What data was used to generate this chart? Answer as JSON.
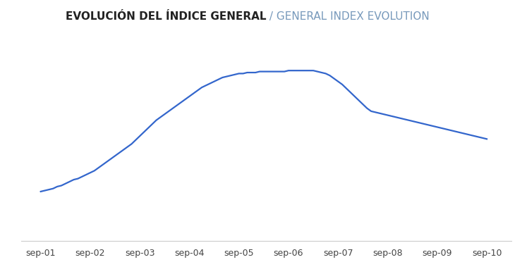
{
  "title_part1": "EVOLUCIÓN DEL ÍNDICE GENERAL",
  "title_part2": " / GENERAL INDEX EVOLUTION",
  "title_color1": "#222222",
  "title_color2": "#7799bb",
  "line_color": "#3366cc",
  "background_color": "#ffffff",
  "grid_color": "#cccccc",
  "x_labels": [
    "sep-01",
    "sep-02",
    "sep-03",
    "sep-04",
    "sep-05",
    "sep-06",
    "sep-07",
    "sep-08",
    "sep-09",
    "sep-10"
  ],
  "y_values": [
    100,
    101,
    102,
    103,
    105,
    106,
    108,
    110,
    112,
    113,
    115,
    117,
    119,
    121,
    124,
    127,
    130,
    133,
    136,
    139,
    142,
    145,
    148,
    152,
    156,
    160,
    164,
    168,
    172,
    175,
    178,
    181,
    184,
    187,
    190,
    193,
    196,
    199,
    202,
    205,
    207,
    209,
    211,
    213,
    215,
    216,
    217,
    218,
    219,
    219,
    220,
    220,
    220,
    221,
    221,
    221,
    221,
    221,
    221,
    221,
    222,
    222,
    222,
    222,
    222,
    222,
    222,
    221,
    220,
    219,
    217,
    214,
    211,
    208,
    204,
    200,
    196,
    192,
    188,
    184,
    181,
    180,
    179,
    178,
    177,
    176,
    175,
    174,
    173,
    172,
    171,
    170,
    169,
    168,
    167,
    166,
    165,
    164,
    163,
    162,
    161,
    160,
    159,
    158,
    157,
    156,
    155,
    154,
    153
  ],
  "ylim_min": 50,
  "ylim_max": 260,
  "figsize": [
    7.4,
    3.89
  ],
  "dpi": 100,
  "title_fontsize": 11
}
